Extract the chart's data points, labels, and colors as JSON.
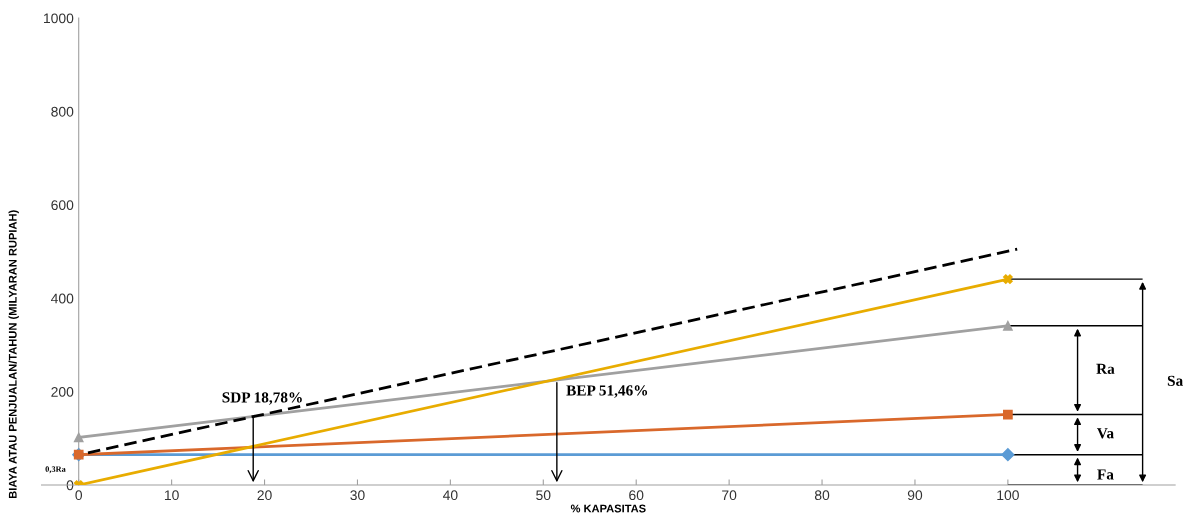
{
  "chart_data": {
    "type": "line",
    "xlabel": "% KAPASITAS",
    "ylabel": "BIAYA ATAU PENJUALAN/TAHUN (MILYARAN RUPIAH)",
    "x": [
      0,
      100
    ],
    "xlim": [
      -4,
      118
    ],
    "xticks": [
      0,
      10,
      20,
      30,
      40,
      50,
      60,
      70,
      80,
      90,
      100
    ],
    "ylim": [
      0,
      1000
    ],
    "yticks": [
      0,
      200,
      400,
      600,
      800,
      1000
    ],
    "grid": false,
    "legend": false,
    "series": [
      {
        "color": "#5b9bd5",
        "values": [
          65,
          65
        ],
        "marker": "diamond"
      },
      {
        "color": "#d9682b",
        "values": [
          65,
          151
        ],
        "marker": "square"
      },
      {
        "color": "#a0a0a0",
        "values": [
          102,
          341
        ],
        "marker": "triangle"
      },
      {
        "color": "#e8ac00",
        "values": [
          0,
          441
        ],
        "marker": "cross"
      },
      {
        "color": "#000000",
        "x": [
          1,
          101
        ],
        "values": [
          69,
          505
        ],
        "marker": "none",
        "line_style": "dashed"
      }
    ],
    "ref_lines": [
      {
        "axis": "y",
        "value": 441,
        "color": "#000000"
      },
      {
        "axis": "y",
        "value": 341,
        "color": "#000000"
      },
      {
        "axis": "y",
        "value": 151,
        "color": "#000000"
      },
      {
        "axis": "y",
        "value": 65,
        "color": "#000000"
      },
      {
        "axis": "y",
        "value": 0,
        "color": "#000000"
      }
    ],
    "annotations": [
      {
        "text": "SDP 18,78%",
        "x": 18.78,
        "y": 150
      },
      {
        "text": "BEP 51,46%",
        "x": 51.46,
        "y": 225
      },
      "Ra",
      "Va",
      "Fa",
      "Sa",
      "0,3Ra"
    ]
  }
}
